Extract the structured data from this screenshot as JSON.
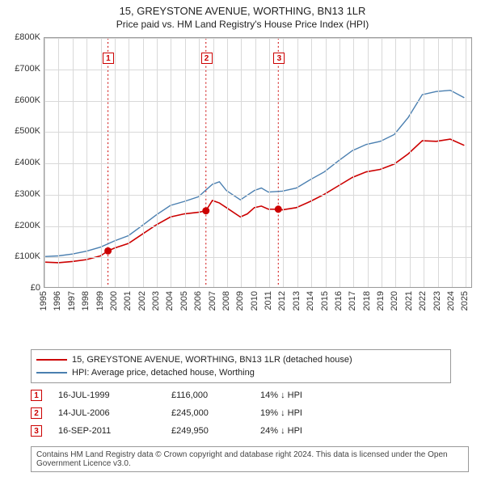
{
  "title": "15, GREYSTONE AVENUE, WORTHING, BN13 1LR",
  "subtitle": "Price paid vs. HM Land Registry's House Price Index (HPI)",
  "chart": {
    "type": "line",
    "background_color": "#ffffff",
    "grid_color": "#d9d9d9",
    "border_color": "#999999",
    "x_years": [
      1995,
      1996,
      1997,
      1998,
      1999,
      2000,
      2001,
      2002,
      2003,
      2004,
      2005,
      2006,
      2007,
      2008,
      2009,
      2010,
      2011,
      2012,
      2013,
      2014,
      2015,
      2016,
      2017,
      2018,
      2019,
      2020,
      2021,
      2022,
      2023,
      2024,
      2025
    ],
    "x_min": 1995,
    "x_max": 2025.5,
    "y_min": 0,
    "y_max": 800000,
    "y_tick_step": 100000,
    "y_tick_labels": [
      "£0",
      "£100K",
      "£200K",
      "£300K",
      "£400K",
      "£500K",
      "£600K",
      "£700K",
      "£800K"
    ],
    "series": [
      {
        "name": "property",
        "color": "#cc0000",
        "width": 1.6,
        "points": [
          [
            1995,
            80000
          ],
          [
            1996,
            78000
          ],
          [
            1997,
            82000
          ],
          [
            1998,
            88000
          ],
          [
            1999,
            100000
          ],
          [
            1999.54,
            116000
          ],
          [
            2000,
            125000
          ],
          [
            2001,
            140000
          ],
          [
            2002,
            170000
          ],
          [
            2003,
            200000
          ],
          [
            2004,
            225000
          ],
          [
            2005,
            235000
          ],
          [
            2006,
            240000
          ],
          [
            2006.54,
            245000
          ],
          [
            2007,
            278000
          ],
          [
            2007.5,
            270000
          ],
          [
            2008,
            255000
          ],
          [
            2009,
            225000
          ],
          [
            2009.5,
            235000
          ],
          [
            2010,
            255000
          ],
          [
            2010.5,
            260000
          ],
          [
            2011,
            250000
          ],
          [
            2011.71,
            249950
          ],
          [
            2012,
            248000
          ],
          [
            2013,
            255000
          ],
          [
            2014,
            275000
          ],
          [
            2015,
            298000
          ],
          [
            2016,
            325000
          ],
          [
            2017,
            352000
          ],
          [
            2018,
            370000
          ],
          [
            2019,
            378000
          ],
          [
            2020,
            395000
          ],
          [
            2021,
            428000
          ],
          [
            2022,
            470000
          ],
          [
            2023,
            468000
          ],
          [
            2024,
            475000
          ],
          [
            2025,
            455000
          ]
        ]
      },
      {
        "name": "hpi",
        "color": "#4a7fb0",
        "width": 1.4,
        "points": [
          [
            1995,
            98000
          ],
          [
            1996,
            100000
          ],
          [
            1997,
            106000
          ],
          [
            1998,
            115000
          ],
          [
            1999,
            128000
          ],
          [
            2000,
            148000
          ],
          [
            2001,
            165000
          ],
          [
            2002,
            198000
          ],
          [
            2003,
            232000
          ],
          [
            2004,
            262000
          ],
          [
            2005,
            275000
          ],
          [
            2006,
            290000
          ],
          [
            2007,
            330000
          ],
          [
            2007.5,
            338000
          ],
          [
            2008,
            310000
          ],
          [
            2009,
            280000
          ],
          [
            2009.5,
            295000
          ],
          [
            2010,
            310000
          ],
          [
            2010.5,
            318000
          ],
          [
            2011,
            305000
          ],
          [
            2012,
            308000
          ],
          [
            2013,
            318000
          ],
          [
            2014,
            345000
          ],
          [
            2015,
            370000
          ],
          [
            2016,
            405000
          ],
          [
            2017,
            438000
          ],
          [
            2018,
            458000
          ],
          [
            2019,
            468000
          ],
          [
            2020,
            490000
          ],
          [
            2021,
            545000
          ],
          [
            2022,
            618000
          ],
          [
            2023,
            628000
          ],
          [
            2024,
            632000
          ],
          [
            2025,
            608000
          ]
        ]
      }
    ],
    "events": [
      {
        "n": "1",
        "x": 1999.54,
        "color": "#cc0000"
      },
      {
        "n": "2",
        "x": 2006.54,
        "color": "#cc0000"
      },
      {
        "n": "3",
        "x": 2011.71,
        "color": "#cc0000"
      }
    ],
    "sale_markers": [
      {
        "x": 1999.54,
        "y": 116000
      },
      {
        "x": 2006.54,
        "y": 245000
      },
      {
        "x": 2011.71,
        "y": 249950
      }
    ]
  },
  "legend": {
    "items": [
      {
        "color": "#cc0000",
        "label": "15, GREYSTONE AVENUE, WORTHING, BN13 1LR (detached house)"
      },
      {
        "color": "#4a7fb0",
        "label": "HPI: Average price, detached house, Worthing"
      }
    ]
  },
  "sales": [
    {
      "n": "1",
      "date": "16-JUL-1999",
      "price": "£116,000",
      "hpi": "14% ↓ HPI"
    },
    {
      "n": "2",
      "date": "14-JUL-2006",
      "price": "£245,000",
      "hpi": "19% ↓ HPI"
    },
    {
      "n": "3",
      "date": "16-SEP-2011",
      "price": "£249,950",
      "hpi": "24% ↓ HPI"
    }
  ],
  "footer": "Contains HM Land Registry data © Crown copyright and database right 2024. This data is licensed under the Open Government Licence v3.0."
}
